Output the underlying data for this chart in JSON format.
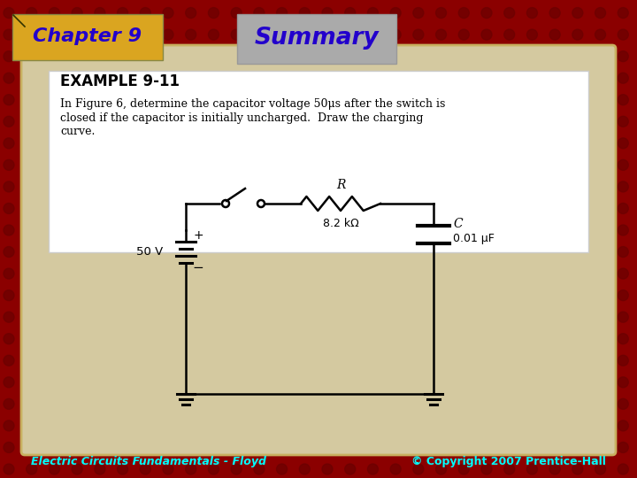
{
  "bg_color": "#8B0000",
  "slide_title": "Summary",
  "chapter_label": "Chapter 9",
  "chapter_bg": "#DAA520",
  "chapter_text_color": "#2200CC",
  "summary_bg": "#AAAAAA",
  "summary_text_color": "#2200CC",
  "content_bg": "#D4C9A0",
  "inner_bg": "#FFFFFF",
  "example_title": "EXAMPLE 9-11",
  "example_text_line1": "In Figure 6, determine the capacitor voltage 50μs after the switch is",
  "example_text_line2": "closed if the capacitor is initially uncharged.  Draw the charging",
  "example_text_line3": "curve.",
  "footer_left": "Electric Circuits Fundamentals - Floyd",
  "footer_right": "© Copyright 2007 Prentice-Hall",
  "footer_color": "#00FFFF",
  "resistor_label": "R",
  "resistor_value": "8.2 kΩ",
  "capacitor_label": "C",
  "capacitor_value": "0.01 μF",
  "voltage_label": "50 V"
}
